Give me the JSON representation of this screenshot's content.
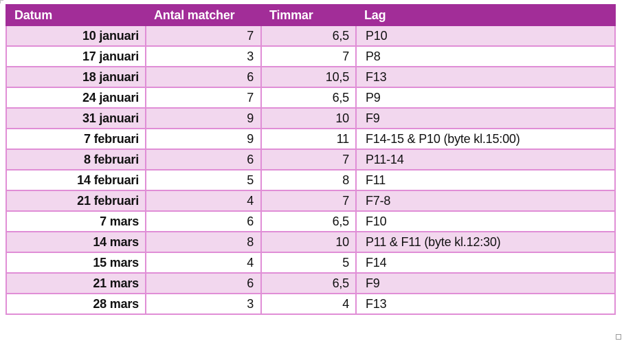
{
  "table": {
    "columns": [
      {
        "label": "Datum"
      },
      {
        "label": "Antal matcher"
      },
      {
        "label": "Timmar"
      },
      {
        "label": "Lag"
      }
    ],
    "rows": [
      {
        "datum": "10 januari",
        "antal_matcher": "7",
        "timmar": "6,5",
        "lag": "P10"
      },
      {
        "datum": "17 januari",
        "antal_matcher": "3",
        "timmar": "7",
        "lag": "P8"
      },
      {
        "datum": "18 januari",
        "antal_matcher": "6",
        "timmar": "10,5",
        "lag": "F13"
      },
      {
        "datum": "24 januari",
        "antal_matcher": "7",
        "timmar": "6,5",
        "lag": "P9"
      },
      {
        "datum": "31 januari",
        "antal_matcher": "9",
        "timmar": "10",
        "lag": "F9"
      },
      {
        "datum": "7 februari",
        "antal_matcher": "9",
        "timmar": "11",
        "lag": "F14-15 & P10 (byte kl.15:00)"
      },
      {
        "datum": "8 februari",
        "antal_matcher": "6",
        "timmar": "7",
        "lag": "P11-14"
      },
      {
        "datum": "14 februari",
        "antal_matcher": "5",
        "timmar": "8",
        "lag": "F11"
      },
      {
        "datum": "21 februari",
        "antal_matcher": "4",
        "timmar": "7",
        "lag": "F7-8"
      },
      {
        "datum": "7 mars",
        "antal_matcher": "6",
        "timmar": "6,5",
        "lag": "F10"
      },
      {
        "datum": "14 mars",
        "antal_matcher": "8",
        "timmar": "10",
        "lag": "P11 & F11 (byte kl.12:30)"
      },
      {
        "datum": "15 mars",
        "antal_matcher": "4",
        "timmar": "5",
        "lag": "F14"
      },
      {
        "datum": "21 mars",
        "antal_matcher": "6",
        "timmar": "6,5",
        "lag": "F9"
      },
      {
        "datum": "28 mars",
        "antal_matcher": "3",
        "timmar": "4",
        "lag": "F13"
      }
    ]
  },
  "colors": {
    "header_bg": "#a22d98",
    "header_text": "#ffffff",
    "border_pink": "#e08ed6",
    "stripe_pink": "#f2d7ee",
    "row_white": "#ffffff",
    "text": "#111111"
  }
}
